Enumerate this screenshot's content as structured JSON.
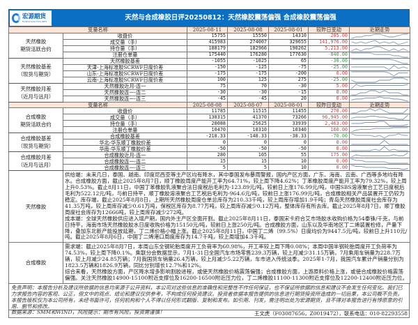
{
  "header": {
    "logo_text": "宏源期货",
    "logo_sub": "HONGYUAN FUTURES",
    "title": "天然与合成橡胶日评20250812：天然橡胶震荡偏强 合成橡胶震荡偏强"
  },
  "colors": {
    "title_bar": "#0b6fc4",
    "header_row": "#fce4d6",
    "positive": "#e03a3a",
    "negative": "#2e9e3e",
    "sparkline": "#7f96b5"
  },
  "blocks": [
    {
      "header": [
        "变量名称",
        "2025-08-11",
        "2025-08-08",
        "2025-08-01",
        "较昨日变动",
        "近期走势"
      ],
      "groups": [
        {
          "label": "天然橡胶\n期货活跃合约",
          "rows": [
            {
              "name": "收盘价",
              "v": [
                "15755",
                "15550",
                "14310"
              ],
              "chg": "205.00",
              "trend": [
                3,
                4,
                4,
                5,
                5,
                6,
                6,
                5,
                4,
                4,
                5,
                6,
                6
              ]
            },
            {
              "name": "成交量（手）",
              "v": [
                "415983",
                "274007",
                "329655"
              ],
              "chg": "141,976.00",
              "trend": [
                5,
                4,
                5,
                4,
                5,
                6,
                4,
                5,
                4,
                5,
                3,
                4,
                5
              ]
            },
            {
              "name": "持仓量（手）",
              "v": [
                "188179",
                "182966",
                "190262"
              ],
              "chg": "5,213.00",
              "trend": [
                4,
                5,
                4,
                5,
                5,
                6,
                6,
                5,
                4,
                5,
                4,
                5,
                4
              ]
            },
            {
              "name": "注册仓单量",
              "v": [
                "175440",
                "176280",
                "177630"
              ],
              "chg": "-840.00",
              "trend": [
                7,
                7,
                7,
                7,
                7,
                6,
                6,
                6,
                6,
                5,
                5,
                4,
                4
              ]
            }
          ]
        },
        {
          "label": "天然橡胶基差\n（现货与期货）",
          "rows": [
            {
              "name": "天然橡胶基差",
              "v": [
                "-1055",
                "-1025",
                "65"
              ],
              "chg": "-30.00",
              "trend": [
                7,
                7,
                7,
                7,
                7,
                7,
                7,
                7,
                7,
                6,
                4,
                2,
                2
              ]
            },
            {
              "name": "天津-上海标准胶SCRWF日度价差",
              "v": [
                "-150",
                "-125",
                "-75"
              ],
              "chg": "-25.00",
              "trend": [
                5,
                5,
                5,
                5,
                5,
                5,
                5,
                5,
                3,
                6,
                4,
                5,
                4
              ]
            },
            {
              "name": "山东-上海标准胶SCRWF日度价差",
              "v": [
                "-175",
                "-175",
                "-200"
              ],
              "chg": "0.00",
              "trend": [
                6,
                6,
                6,
                6,
                6,
                6,
                6,
                6,
                5,
                2,
                5,
                5,
                5
              ]
            },
            {
              "name": "云南-上海标准胶SCRWF日度价差",
              "v": [
                "100",
                "125",
                "275"
              ],
              "chg": "-25.00",
              "trend": [
                5,
                4,
                4,
                4,
                4,
                4,
                5,
                5,
                5,
                6,
                6,
                6,
                5
              ]
            }
          ]
        },
        {
          "label": "天然橡胶月差\n（近月与远月）",
          "rows": [
            {
              "name": "天然橡胶近月-连一",
              "v": [
                "75",
                "70",
                "-30"
              ],
              "chg": "5.00",
              "trend": [
                2,
                6,
                4,
                5,
                5,
                5,
                5,
                5,
                5,
                5,
                5,
                5,
                6
              ]
            },
            {
              "name": "天然橡胶连一-连二",
              "v": [
                "-30",
                "-30",
                "-15"
              ],
              "chg": "0.00",
              "trend": [
                3,
                3,
                4,
                4,
                5,
                5,
                4,
                5,
                4,
                4,
                4,
                3,
                3
              ]
            },
            {
              "name": "天然橡胶连一-连三",
              "v": [
                "-45",
                "-45",
                "20"
              ],
              "chg": "0.00",
              "trend": [
                3,
                4,
                4,
                5,
                5,
                5,
                6,
                5,
                5,
                4,
                4,
                3,
                2
              ]
            }
          ]
        }
      ]
    },
    {
      "header": [
        "变量名称",
        "2025-08-08",
        "2025-08-07",
        "2025-08-01",
        "较昨日变动",
        "近期走势"
      ],
      "groups": [
        {
          "label": "合成橡胶\n期货活跃合约",
          "rows": [
            {
              "name": "收盘价",
              "v": [
                "11785",
                "11515",
                "11455"
              ],
              "chg": "270.00",
              "trend": [
                4,
                4,
                5,
                5,
                6,
                5,
                6,
                5,
                4,
                4,
                4,
                4,
                6
              ]
            },
            {
              "name": "成交量（手）",
              "v": [
                "138315",
                "41370",
                "73266"
              ],
              "chg": "96,945.00",
              "trend": [
                4,
                5,
                5,
                5,
                6,
                6,
                5,
                5,
                4,
                4,
                3,
                3,
                7
              ]
            },
            {
              "name": "持仓量（手）",
              "v": [
                "28088",
                "25625",
                "33939"
              ],
              "chg": "2,463.00",
              "trend": [
                5,
                5,
                5,
                6,
                6,
                6,
                7,
                7,
                3,
                3,
                3,
                3,
                4
              ]
            },
            {
              "name": "注册仓单量",
              "v": [
                "10470",
                "10310",
                "10340"
              ],
              "chg": "160.00",
              "trend": [
                1,
                3,
                4,
                4,
                4,
                5,
                5,
                5,
                5,
                6,
                6,
                6,
                6
              ]
            }
          ]
        },
        {
          "label": "合成橡胶基差\n（现货与期货）",
          "rows": [
            {
              "name": "合成橡胶基差",
              "v": [
                "-218.33",
                "-148.33",
                "-38.33"
              ],
              "chg": "-70.00",
              "trend": [
                6,
                5,
                5,
                5,
                5,
                4,
                5,
                3,
                5,
                5,
                6,
                5,
                5
              ]
            },
            {
              "name": "华北-华东顺丁橡胶价差",
              "v": [
                "0",
                "0",
                "0"
              ],
              "chg": "0.00",
              "trend": [
                2,
                2,
                2,
                2,
                2,
                2,
                2,
                7,
                2,
                2,
                2,
                2,
                2
              ]
            },
            {
              "name": "华南-华东顺丁橡胶价差",
              "v": [
                "-50",
                "-50",
                "-50"
              ],
              "chg": "0.00",
              "trend": [
                3,
                3,
                3,
                3,
                3,
                4,
                3,
                6,
                3,
                4,
                3,
                3,
                3
              ]
            }
          ]
        },
        {
          "label": "合成橡胶月差\n（近月与远月）",
          "rows": [
            {
              "name": "合成橡胶近月-连一",
              "v": [
                "280",
                "105",
                "55"
              ],
              "chg": "175.00",
              "trend": [
                3,
                5,
                4,
                4,
                4,
                4,
                4,
                4,
                4,
                5,
                4,
                4,
                7
              ]
            },
            {
              "name": "合成橡胶连一-连二",
              "v": [
                "15",
                "15",
                "10"
              ],
              "chg": "0.00",
              "trend": [
                6,
                5,
                5,
                4,
                4,
                4,
                4,
                4,
                3,
                3,
                3,
                3,
                3
              ]
            },
            {
              "name": "合成橡胶连一-连三",
              "v": [
                "5",
                "5",
                "10"
              ],
              "chg": "0.00",
              "trend": [
                6,
                5,
                5,
                4,
                4,
                4,
                4,
                4,
                3,
                3,
                3,
                2,
                3
              ]
            }
          ]
        }
      ]
    }
  ],
  "analysis": [
    {
      "label": "天然橡胶",
      "paragraphs": [
        "供给端：未来几日，泰国、越南、印度尼西亚等主产区均有降水，其中泰国发布暴雨警报，国内产区方面，广东、海南、云南、广西等多地均有降水。合成橡胶方面，截止2025年8月7日，顺丁橡胶周度产能开工率为64.71%，较上周下降4.62%；丁苯橡胶周度产能开工率为79.32%，较上周上升0.53%。截止8月11日，中国丁苯橡胶乳液聚合法日度税后毛利为-123.89元/吨，较前日上涨176.99元/吨，中国SBS溶液聚合工艺日度税后毛利为522.12元/吨，与前日持平，顺丁橡胶溶液聚合工艺税后毛利为-964.6元/吨，较前日上涨176.99元/吨，合成橡胶相关产品装置开工仍较为稳定。库存端，截止2025年8月8日，上期所天然橡胶周度仓单总库存为210.33千吨，较上周库存增加1.9千吨；青岛天然橡胶周度社会库存为41.35万吨，较上周库存减少0.61万吨，保税区库存为8.77万吨，较上周库存减少0.12万吨，整体库存有所去库。截止2025年8月7日，顺丁橡胶周度社会库存为12666吨，较上周库存减少272吨。",
        "成本端：全球天然橡胶供应进入增产期，国内外主产区全面开割。截止2025年8月11日，泰国宋卡府合艾市场胶水收购价格为54泰铢/千克，与前日持平，海南市场天然橡胶胶水日度收购价格为15150元/吨，较前日上涨250元/吨。合成橡胶方面，山东以及华南地区丁二烯装置检修，产量下降，叠加东北新产能投放延期，丁二烯价格小幅上涨。截止2025年8月11日，中国丁二烯（99.5%）日度均价为9447.5元/吨，较前日上升110元/吨。截止2025年8月6日，中国丁二烯港口周度库存为14.7千吨，较上周增加4.3千吨。"
      ]
    },
    {
      "label": "合成橡胶",
      "paragraphs": [
        "需求端：截止2025年8月7日，本周山东全钢轮胎周度开工负荷率为60.98%，开工率较上周下降0.08%；本周中国半钢轮胎周度开工负荷率为74.53%，较上周下降0.1%。乘联分会数据显示，7月1-31日全国汽车市场零售239.3万辆，较上月减少31.15万辆，7月乘用车销量为228.7万辆，较上月减少24.85万辆；7月我国货车销量26.4万辆，较上月减少5.22万辆，车市进入传统淡季。2025年1-7月，我国汽车累计产销量分别为1823.5万辆和1826.9万辆，同比分别增长12.7%和12%。",
        "综合来看，天然橡胶方面，产区降水增多影响割胶进程，或使天然橡胶价格震荡偏强；合成橡胶方面，上游原料价格上涨，或使合成橡胶价格震荡偏强。关注天然橡胶14900-15100附近支撑位及16200-16500附近压力位，丁二烯橡胶11100-11300附近支撑位及12200-12400附近压力位。"
      ]
    }
  ],
  "disclaimer": "免责声明：本报告分析及建议所依据的信息均来源于公开资料，本公司对这些信息的准确性和完整性不作任何保证，也不保证所依据的信息和建议不会发生任何变化。我们已力求报告内容的客观、公正，但文中的观点、结论和建议仅供参考，不构成任何投资建议。投资者依据本报告提供的信息进行期货投资所造成的一切后果，本公司概不负责。本报告版权仅为本公司所有，未经书面许可，任何机构和个人不得以任何形式翻版、复制和发布。如引用、刊发，需注明出处为宏源期货，且不得对本报告进行有悖原意的引用、删节和修改。",
  "data_source": "数据来源：SMM和WIND，风险提示：期市有风险，投资需谨慎！",
  "author": "王文虎（F03087656，Z0019472），联系电话：010-82293558"
}
